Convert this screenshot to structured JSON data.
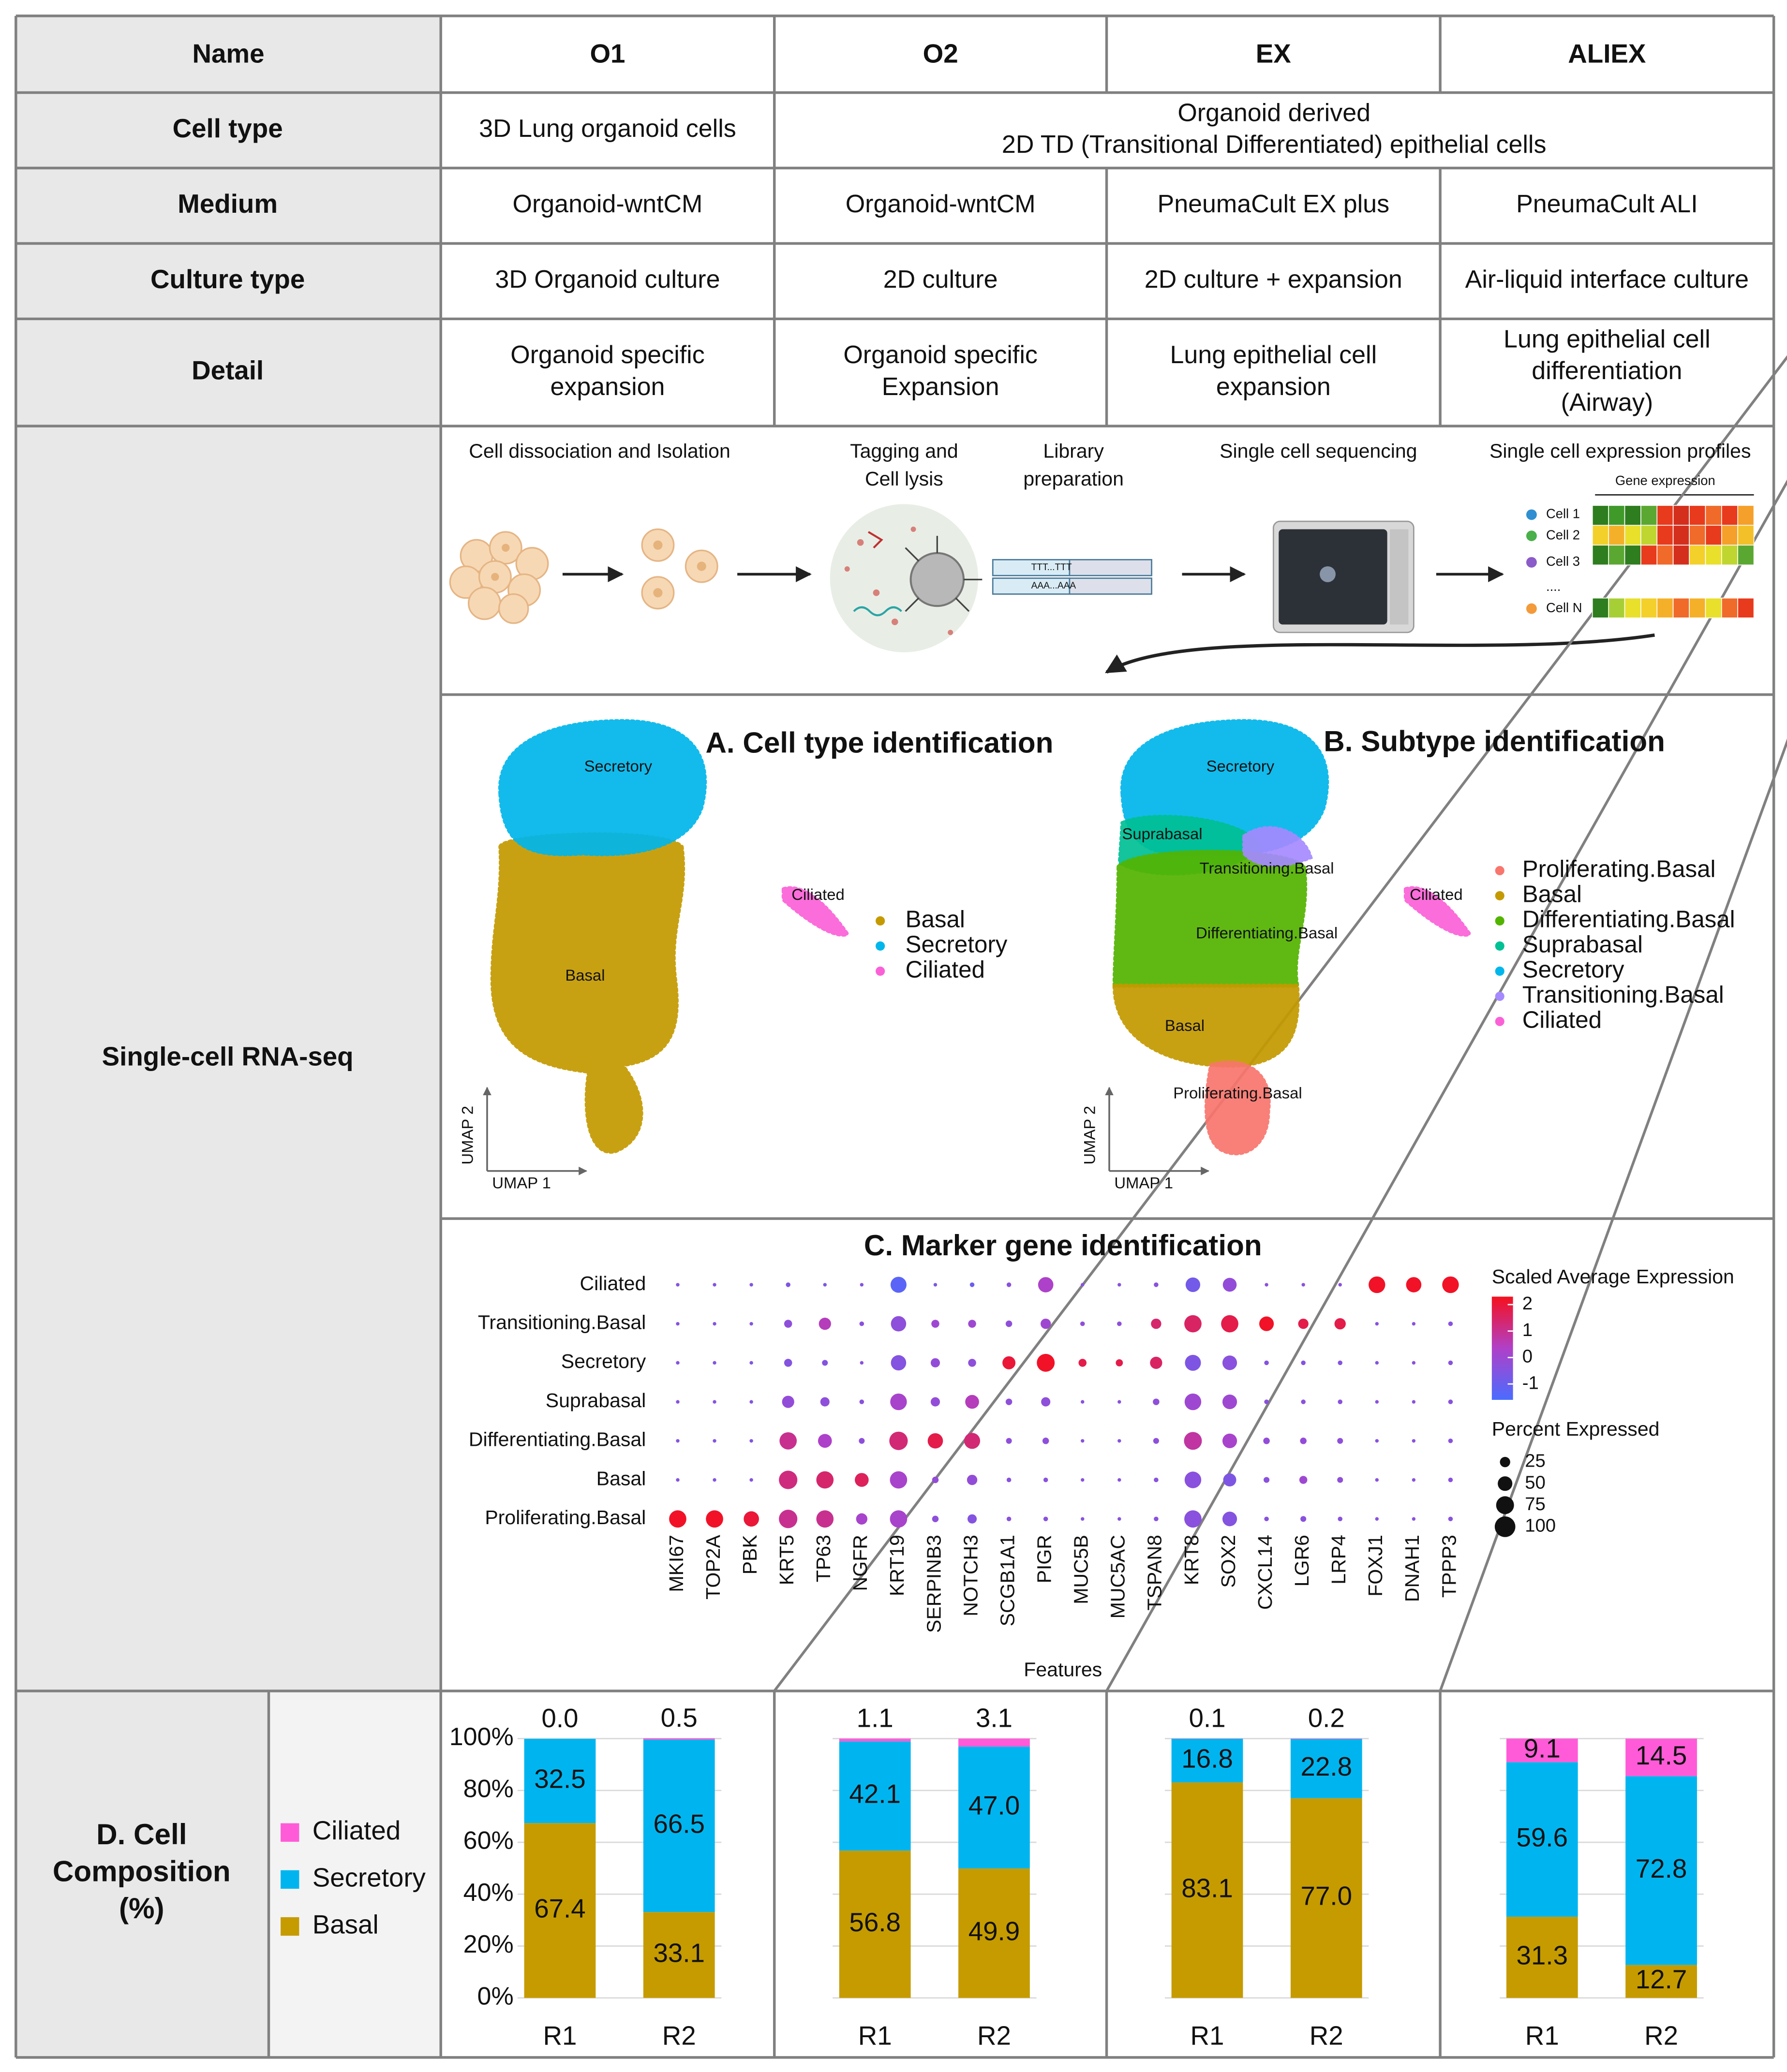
{
  "table": {
    "header": [
      "Name",
      "O1",
      "O2",
      "EX",
      "ALIEX"
    ],
    "rows": [
      {
        "label": "Cell type",
        "cells": [
          [
            "3D Lung organoid cells"
          ],
          [
            "Organoid derived",
            "2D TD (Transitional Differentiated) epithelial cells"
          ]
        ]
      },
      {
        "label": "Medium",
        "cells": [
          [
            "Organoid-wntCM"
          ],
          [
            "Organoid-wntCM"
          ],
          [
            "PneumaCult EX plus"
          ],
          [
            "PneumaCult ALI"
          ]
        ]
      },
      {
        "label": "Culture type",
        "cells": [
          [
            "3D Organoid culture"
          ],
          [
            "2D culture"
          ],
          [
            "2D culture + expansion"
          ],
          [
            "Air-liquid interface culture"
          ]
        ]
      },
      {
        "label": "Detail",
        "cells": [
          [
            "Organoid specific",
            "expansion"
          ],
          [
            "Organoid specific",
            "Expansion"
          ],
          [
            "Lung epithelial cell",
            "expansion"
          ],
          [
            "Lung epithelial cell",
            "differentiation",
            "(Airway)"
          ]
        ]
      }
    ]
  },
  "single_cell": {
    "label": "Single-cell RNA-seq",
    "pipeline": {
      "steps": [
        [
          "Cell dissociation and Isolation"
        ],
        [
          "Tagging and",
          "Cell lysis"
        ],
        [
          "Library",
          "preparation"
        ],
        [
          "Single cell sequencing"
        ],
        [
          "Single cell expression profiles"
        ]
      ],
      "tag_labels": [
        "TTT...TTT",
        "AAA...AAA"
      ],
      "heatmap_title": "Gene expression",
      "heatmap_rows": [
        "Cell 1",
        "Cell 2",
        "Cell 3",
        "....",
        "Cell N"
      ]
    },
    "umap": [
      {
        "title": "A. Cell type identification",
        "xlabel": "UMAP 1",
        "ylabel": "UMAP 2",
        "cluster_labels": [
          "Secretory",
          "Ciliated",
          "Basal"
        ],
        "legend": [
          {
            "name": "Basal",
            "color": "#c49a00"
          },
          {
            "name": "Secretory",
            "color": "#00b6eb"
          },
          {
            "name": "Ciliated",
            "color": "#fb61d7"
          }
        ]
      },
      {
        "title": "B. Subtype identification",
        "xlabel": "UMAP 1",
        "ylabel": "UMAP 2",
        "cluster_labels": [
          "Secretory",
          "Suprabasal",
          "Transitioning.Basal",
          "Ciliated",
          "Differentiating.Basal",
          "Basal",
          "Proliferating.Basal"
        ],
        "legend": [
          {
            "name": "Proliferating.Basal",
            "color": "#f8766d"
          },
          {
            "name": "Basal",
            "color": "#c49a00"
          },
          {
            "name": "Differentiating.Basal",
            "color": "#53b400"
          },
          {
            "name": "Suprabasal",
            "color": "#00c094"
          },
          {
            "name": "Secretory",
            "color": "#00b6eb"
          },
          {
            "name": "Transitioning.Basal",
            "color": "#a58aff"
          },
          {
            "name": "Ciliated",
            "color": "#fb61d7"
          }
        ]
      }
    ],
    "dotplot": {
      "title": "C. Marker gene identification",
      "xlabel": "Features",
      "rows": [
        "Ciliated",
        "Transitioning.Basal",
        "Secretory",
        "Suprabasal",
        "Differentiating.Basal",
        "Basal",
        "Proliferating.Basal"
      ],
      "genes": [
        "MKI67",
        "TOP2A",
        "PBK",
        "KRT5",
        "TP63",
        "NGFR",
        "KRT19",
        "SERPINB3",
        "NOTCH3",
        "SCGB1A1",
        "PIGR",
        "MUC5B",
        "MUC5AC",
        "TSPAN8",
        "KRT8",
        "SOX2",
        "CXCL14",
        "LGR6",
        "LRP4",
        "FOXJ1",
        "DNAH1",
        "TPPP3"
      ],
      "expression": [
        [
          -0.5,
          -0.5,
          -0.5,
          -0.6,
          -0.6,
          -0.5,
          -1.3,
          -0.6,
          -1,
          -0.4,
          0.3,
          -0.4,
          -0.4,
          -0.4,
          -0.8,
          -0.2,
          -0.4,
          -0.4,
          -0.4,
          2.2,
          2.2,
          2.2
        ],
        [
          -0.5,
          -0.5,
          -0.5,
          -0.3,
          0.5,
          -0.4,
          -0.3,
          0,
          0,
          -0.3,
          0,
          -0.3,
          -0.3,
          1.4,
          1.5,
          1.8,
          2.2,
          1.8,
          1.8,
          -0.4,
          -0.4,
          -0.4
        ],
        [
          -0.5,
          -0.5,
          -0.5,
          -0.5,
          -0.5,
          -0.4,
          -0.5,
          -0.2,
          -0.3,
          2,
          2.2,
          1.8,
          1.8,
          1.5,
          -0.6,
          -0.4,
          -0.5,
          -0.5,
          -0.5,
          -0.5,
          -0.4,
          -0.4
        ],
        [
          -0.5,
          -0.5,
          -0.5,
          -0.2,
          -0.3,
          -0.4,
          0.2,
          -0.2,
          0.5,
          -0.3,
          -0.3,
          -0.4,
          -0.4,
          -0.3,
          0,
          0,
          -0.4,
          -0.4,
          -0.4,
          -0.4,
          -0.4,
          -0.4
        ],
        [
          -0.5,
          -0.5,
          -0.5,
          1,
          0.3,
          -0.3,
          1.3,
          1.8,
          1.3,
          -0.3,
          -0.3,
          -0.4,
          -0.4,
          -0.3,
          0.8,
          0.2,
          -0.2,
          -0.2,
          -0.3,
          -0.4,
          -0.4,
          -0.4
        ],
        [
          -0.5,
          -0.5,
          -0.5,
          1.2,
          1.4,
          1.6,
          0.2,
          -0.2,
          -0.2,
          -0.4,
          -0.4,
          -0.4,
          -0.4,
          -0.4,
          -0.4,
          -0.6,
          -0.4,
          0,
          -0.3,
          -0.4,
          -0.4,
          -0.4
        ],
        [
          2.2,
          2.2,
          2,
          1,
          1,
          0.2,
          0.2,
          -0.3,
          -0.5,
          -0.4,
          -0.4,
          -0.4,
          -0.4,
          -0.4,
          -0.4,
          -0.5,
          -0.4,
          -0.4,
          -0.4,
          -0.4,
          -0.4,
          -0.4
        ]
      ],
      "percent": [
        [
          3,
          3,
          3,
          5,
          3,
          3,
          60,
          3,
          5,
          5,
          55,
          3,
          3,
          5,
          50,
          45,
          3,
          3,
          3,
          65,
          55,
          65
        ],
        [
          3,
          3,
          3,
          15,
          35,
          5,
          55,
          15,
          15,
          10,
          25,
          5,
          5,
          25,
          70,
          70,
          50,
          25,
          30,
          3,
          3,
          5
        ],
        [
          3,
          3,
          3,
          15,
          8,
          3,
          55,
          20,
          15,
          40,
          75,
          15,
          12,
          35,
          60,
          50,
          5,
          5,
          5,
          3,
          3,
          5
        ],
        [
          3,
          3,
          3,
          35,
          20,
          5,
          65,
          20,
          45,
          10,
          20,
          3,
          3,
          10,
          65,
          50,
          5,
          5,
          5,
          3,
          3,
          5
        ],
        [
          3,
          3,
          3,
          70,
          45,
          8,
          80,
          55,
          60,
          8,
          10,
          3,
          3,
          8,
          75,
          50,
          10,
          10,
          8,
          3,
          3,
          5
        ],
        [
          3,
          3,
          3,
          80,
          70,
          45,
          70,
          10,
          25,
          5,
          5,
          3,
          3,
          5,
          65,
          40,
          8,
          15,
          8,
          3,
          3,
          5
        ],
        [
          70,
          70,
          55,
          80,
          70,
          30,
          70,
          10,
          20,
          5,
          5,
          3,
          3,
          5,
          70,
          50,
          5,
          8,
          5,
          3,
          3,
          5
        ]
      ],
      "color_legend": {
        "title": "Scaled Average Expression",
        "ticks": [
          2,
          1,
          0,
          -1
        ],
        "lim": [
          -1.6,
          2.3
        ],
        "colors": [
          "#4a6cff",
          "#b040c8",
          "#f5101e"
        ]
      },
      "size_legend": {
        "title": "Percent Expressed",
        "ticks": [
          25,
          50,
          75,
          100
        ]
      }
    }
  },
  "composition": {
    "title": [
      "D. Cell",
      "Composition",
      "(%)"
    ],
    "legend": [
      {
        "name": "Ciliated",
        "color": "#ff5bd8"
      },
      {
        "name": "Secretory",
        "color": "#00b5ef"
      },
      {
        "name": "Basal",
        "color": "#c59b00"
      }
    ],
    "ylim": [
      0,
      100
    ],
    "yticks": [
      {
        "value": 0,
        "label": "0%"
      },
      {
        "value": 20,
        "label": "20%"
      },
      {
        "value": 40,
        "label": "40%"
      },
      {
        "value": 60,
        "label": "60%"
      },
      {
        "value": 80,
        "label": "80%"
      },
      {
        "value": 100,
        "label": "100%"
      }
    ],
    "panels": [
      {
        "categories": [
          "R1",
          "R2"
        ],
        "series": [
          {
            "values": [
              0.0,
              0.5
            ],
            "value_labels": [
              "0.0",
              "0.5"
            ]
          },
          {
            "values": [
              32.5,
              66.5
            ],
            "value_labels": [
              "32.5",
              "66.5"
            ]
          },
          {
            "values": [
              67.4,
              33.1
            ],
            "value_labels": [
              "67.4",
              "33.1"
            ]
          }
        ]
      },
      {
        "categories": [
          "R1",
          "R2"
        ],
        "series": [
          {
            "values": [
              1.1,
              3.1
            ],
            "value_labels": [
              "1.1",
              "3.1"
            ]
          },
          {
            "values": [
              42.1,
              47.0
            ],
            "value_labels": [
              "42.1",
              "47.0"
            ]
          },
          {
            "values": [
              56.8,
              49.9
            ],
            "value_labels": [
              "56.8",
              "49.9"
            ]
          }
        ]
      },
      {
        "categories": [
          "R1",
          "R2"
        ],
        "series": [
          {
            "values": [
              0.1,
              0.2
            ],
            "value_labels": [
              "0.1",
              "0.2"
            ]
          },
          {
            "values": [
              16.8,
              22.8
            ],
            "value_labels": [
              "16.8",
              "22.8"
            ]
          },
          {
            "values": [
              83.1,
              77.0
            ],
            "value_labels": [
              "83.1",
              "77.0"
            ]
          }
        ]
      },
      {
        "categories": [
          "R1",
          "R2"
        ],
        "series": [
          {
            "values": [
              9.1,
              14.5
            ],
            "value_labels": [
              "9.1",
              "14.5"
            ]
          },
          {
            "values": [
              59.6,
              72.8
            ],
            "value_labels": [
              "59.6",
              "72.8"
            ]
          },
          {
            "values": [
              31.3,
              12.7
            ],
            "value_labels": [
              "31.3",
              "12.7"
            ]
          }
        ]
      }
    ]
  }
}
